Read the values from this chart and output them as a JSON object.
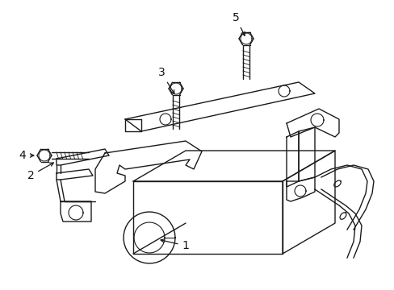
{
  "background_color": "#ffffff",
  "line_color": "#1a1a1a",
  "label_color": "#111111",
  "figsize": [
    4.89,
    3.6
  ],
  "dpi": 100,
  "lw": 1.0
}
